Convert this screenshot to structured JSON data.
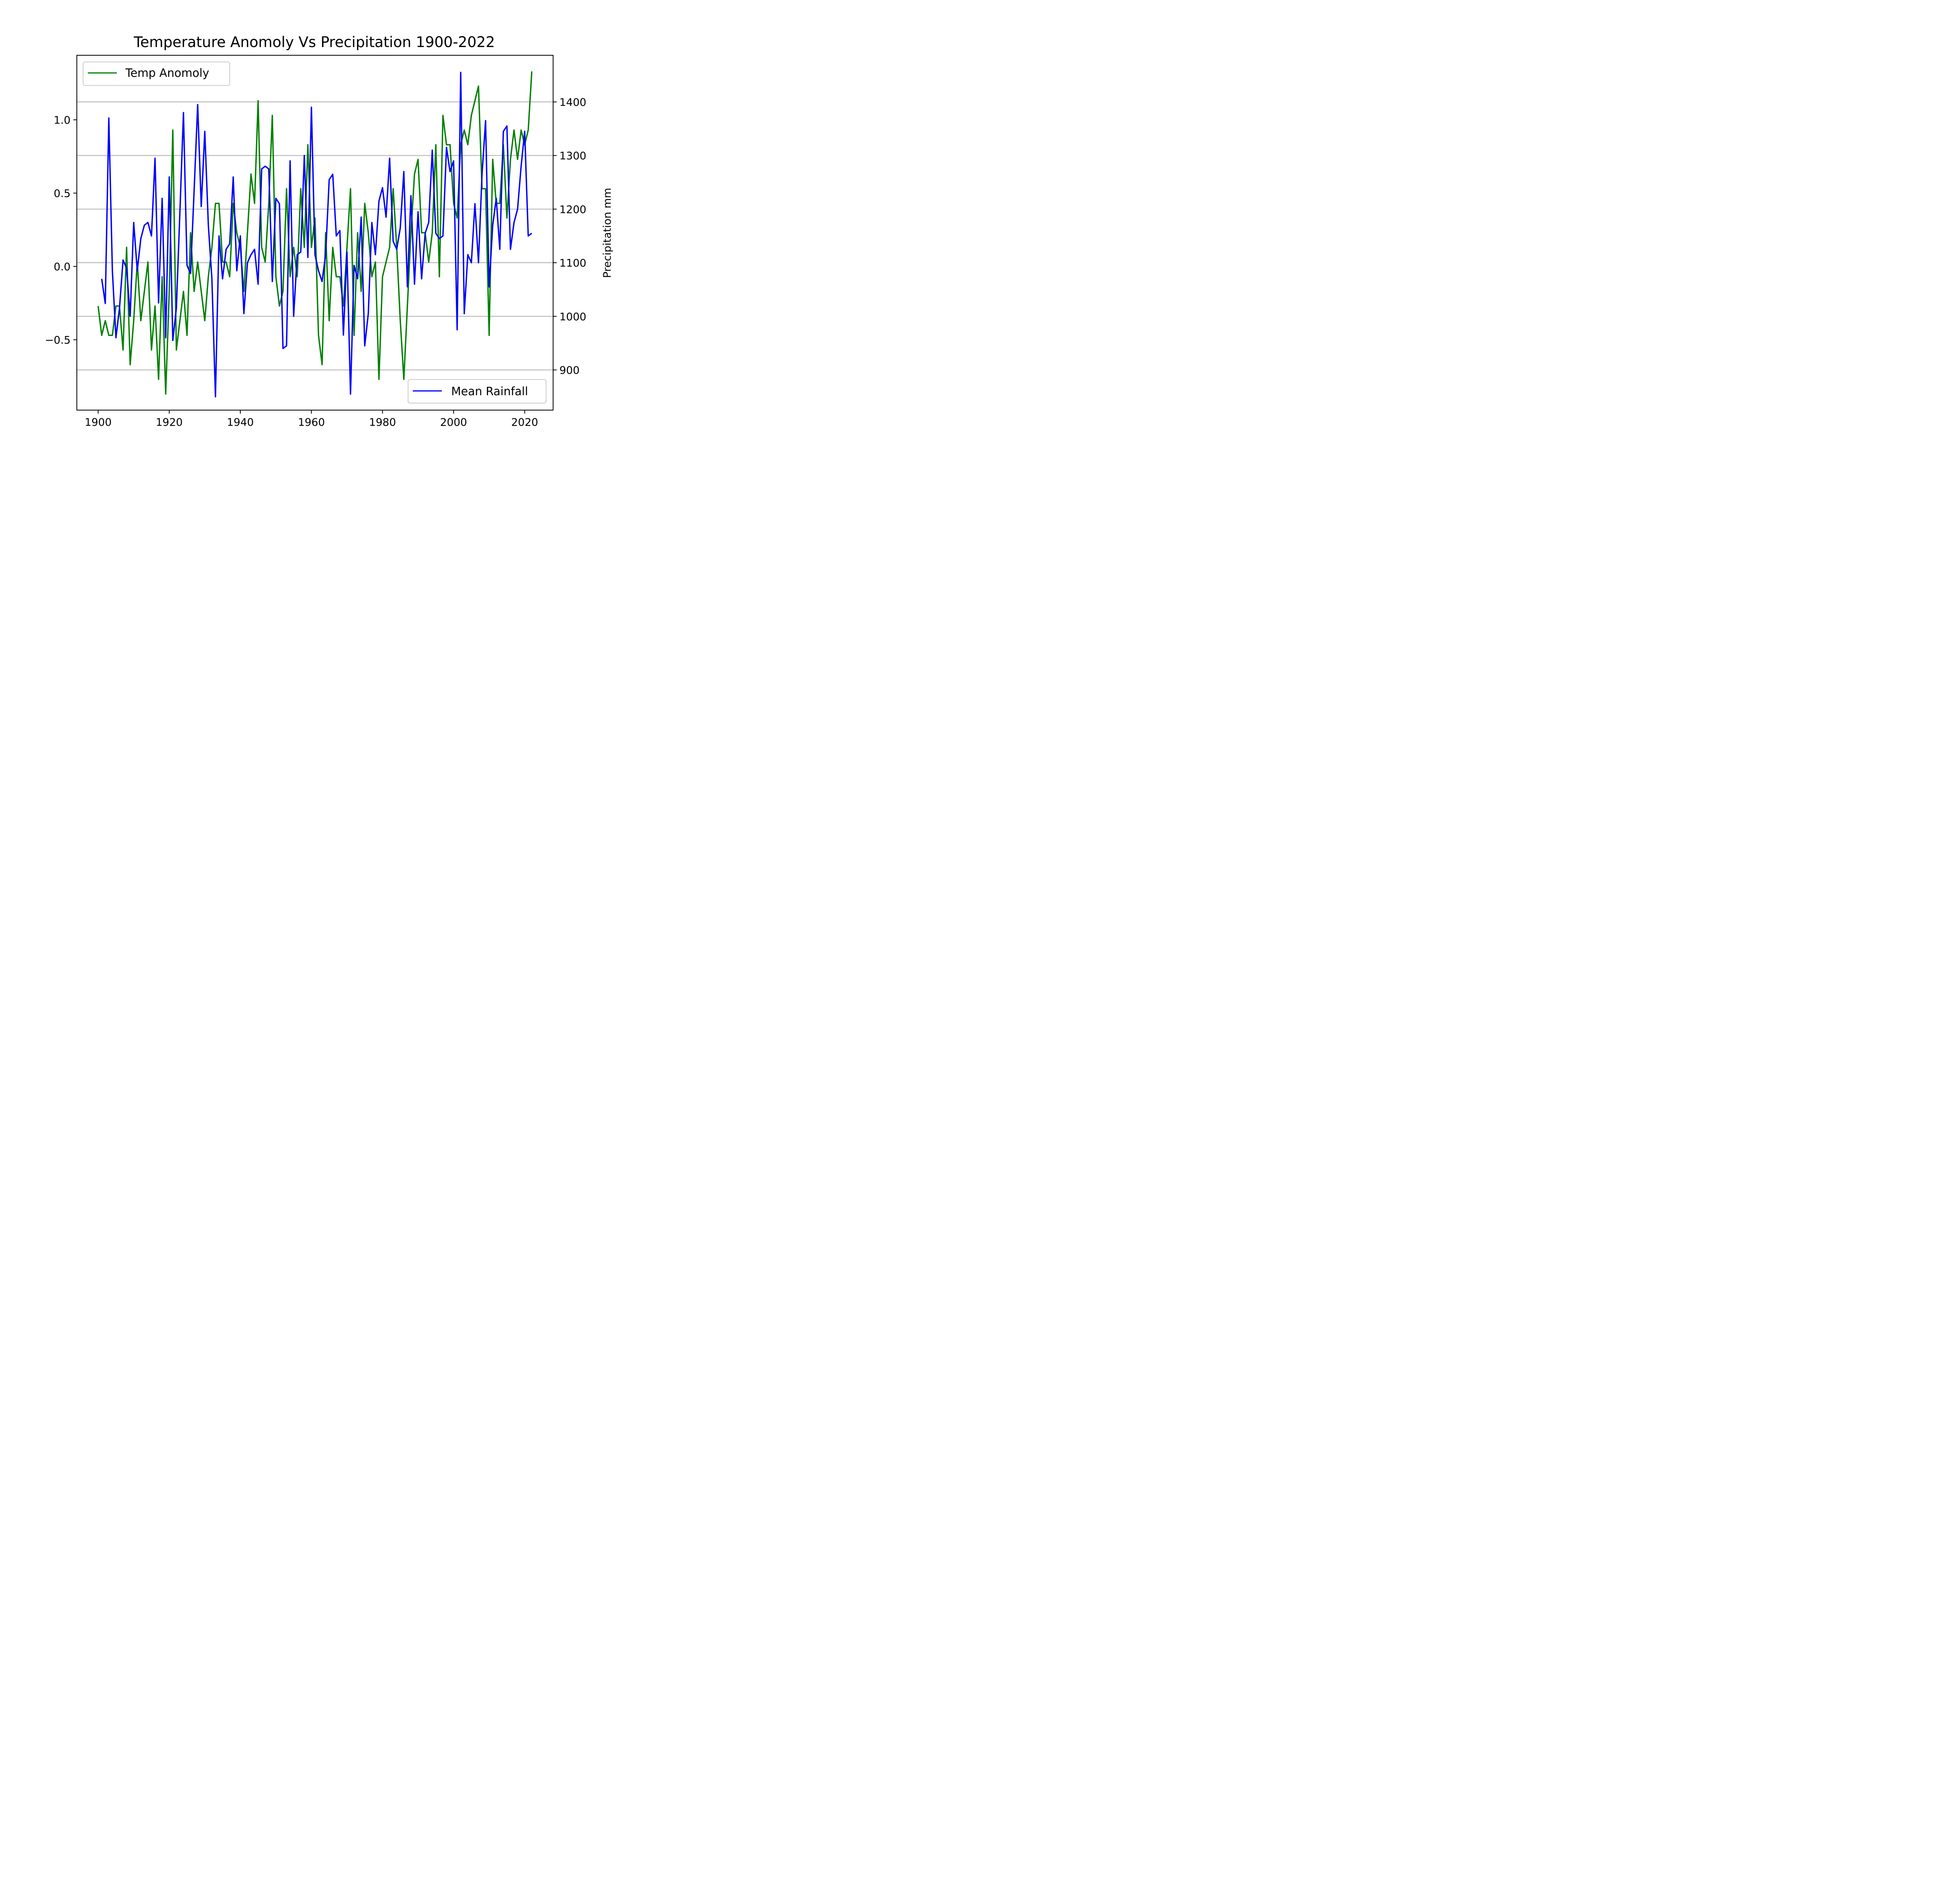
{
  "chart_data": {
    "type": "line",
    "title": "Temperature Anomoly Vs Precipitation 1900-2022",
    "xlabel": "",
    "ylabel_left": "",
    "ylabel_right": "Precipitation mm",
    "xlim": [
      1894,
      2028
    ],
    "ylim_left": [
      -0.98,
      1.44
    ],
    "ylim_right": [
      825,
      1487
    ],
    "x_ticks": [
      1900,
      1920,
      1940,
      1960,
      1980,
      2000,
      2020
    ],
    "y_left_ticks": [
      -0.5,
      0.0,
      0.5,
      1.0
    ],
    "y_left_tick_labels": [
      "−0.5",
      "0.0",
      "0.5",
      "1.0"
    ],
    "y_right_ticks": [
      900,
      1000,
      1100,
      1200,
      1300,
      1400
    ],
    "grid": "horizontal lines at right-axis ticks",
    "series": [
      {
        "name": "Temp Anomoly",
        "axis": "left",
        "color": "#008000",
        "legend_position": "upper-left",
        "x_start": 1900,
        "values": [
          -0.27,
          -0.47,
          -0.37,
          -0.47,
          -0.47,
          -0.27,
          -0.27,
          -0.57,
          0.13,
          -0.67,
          -0.37,
          0.03,
          -0.37,
          -0.17,
          0.03,
          -0.57,
          -0.27,
          -0.77,
          -0.07,
          -0.87,
          -0.17,
          0.93,
          -0.57,
          -0.37,
          -0.17,
          -0.47,
          0.23,
          -0.17,
          0.03,
          -0.17,
          -0.37,
          -0.07,
          0.13,
          0.43,
          0.43,
          0.03,
          0.03,
          -0.07,
          0.43,
          0.23,
          0.13,
          -0.17,
          0.23,
          0.63,
          0.43,
          1.13,
          0.13,
          0.03,
          0.43,
          1.03,
          -0.07,
          -0.27,
          -0.17,
          0.53,
          -0.07,
          0.13,
          -0.07,
          0.53,
          0.13,
          0.83,
          0.13,
          0.33,
          -0.47,
          -0.67,
          0.23,
          -0.37,
          0.13,
          -0.07,
          -0.07,
          -0.27,
          0.13,
          0.53,
          -0.47,
          0.23,
          -0.17,
          0.43,
          0.23,
          -0.07,
          0.03,
          -0.77,
          -0.07,
          0.03,
          0.13,
          0.53,
          0.13,
          -0.37,
          -0.77,
          -0.27,
          0.23,
          0.63,
          0.73,
          0.23,
          0.23,
          0.03,
          0.23,
          0.83,
          -0.07,
          1.03,
          0.83,
          0.83,
          0.43,
          0.33,
          0.83,
          0.93,
          0.83,
          1.03,
          1.13,
          1.23,
          0.53,
          0.53,
          -0.47,
          0.73,
          0.43,
          0.43,
          0.83,
          0.33,
          0.73,
          0.93,
          0.73,
          0.93,
          0.83,
          0.93,
          1.33
        ]
      },
      {
        "name": "Mean Rainfall",
        "axis": "right",
        "color": "#0000ff",
        "legend_position": "lower-right",
        "x_start": 1901,
        "values": [
          1070,
          1024,
          1370,
          1085,
          960,
          1015,
          1105,
          1090,
          1000,
          1175,
          1085,
          1145,
          1170,
          1175,
          1150,
          1295,
          1025,
          1220,
          960,
          1260,
          955,
          1015,
          1195,
          1380,
          1095,
          1080,
          1235,
          1395,
          1205,
          1345,
          1170,
          1070,
          850,
          1150,
          1070,
          1125,
          1135,
          1260,
          1085,
          1150,
          1005,
          1100,
          1115,
          1125,
          1060,
          1275,
          1280,
          1275,
          1065,
          1220,
          1210,
          940,
          945,
          1290,
          1000,
          1115,
          1120,
          1300,
          1110,
          1390,
          1115,
          1085,
          1065,
          1115,
          1255,
          1265,
          1150,
          1160,
          965,
          1120,
          855,
          1095,
          1070,
          1185,
          945,
          1005,
          1175,
          1115,
          1215,
          1240,
          1185,
          1295,
          1140,
          1125,
          1165,
          1270,
          1055,
          1225,
          1060,
          1195,
          1070,
          1155,
          1175,
          1310,
          1155,
          1145,
          1150,
          1315,
          1270,
          1290,
          975,
          1455,
          1005,
          1115,
          1100,
          1210,
          1100,
          1265,
          1365,
          1055,
          1170,
          1220,
          1125,
          1345,
          1355,
          1125,
          1175,
          1200,
          1280,
          1345,
          1150,
          1155
        ]
      }
    ]
  }
}
